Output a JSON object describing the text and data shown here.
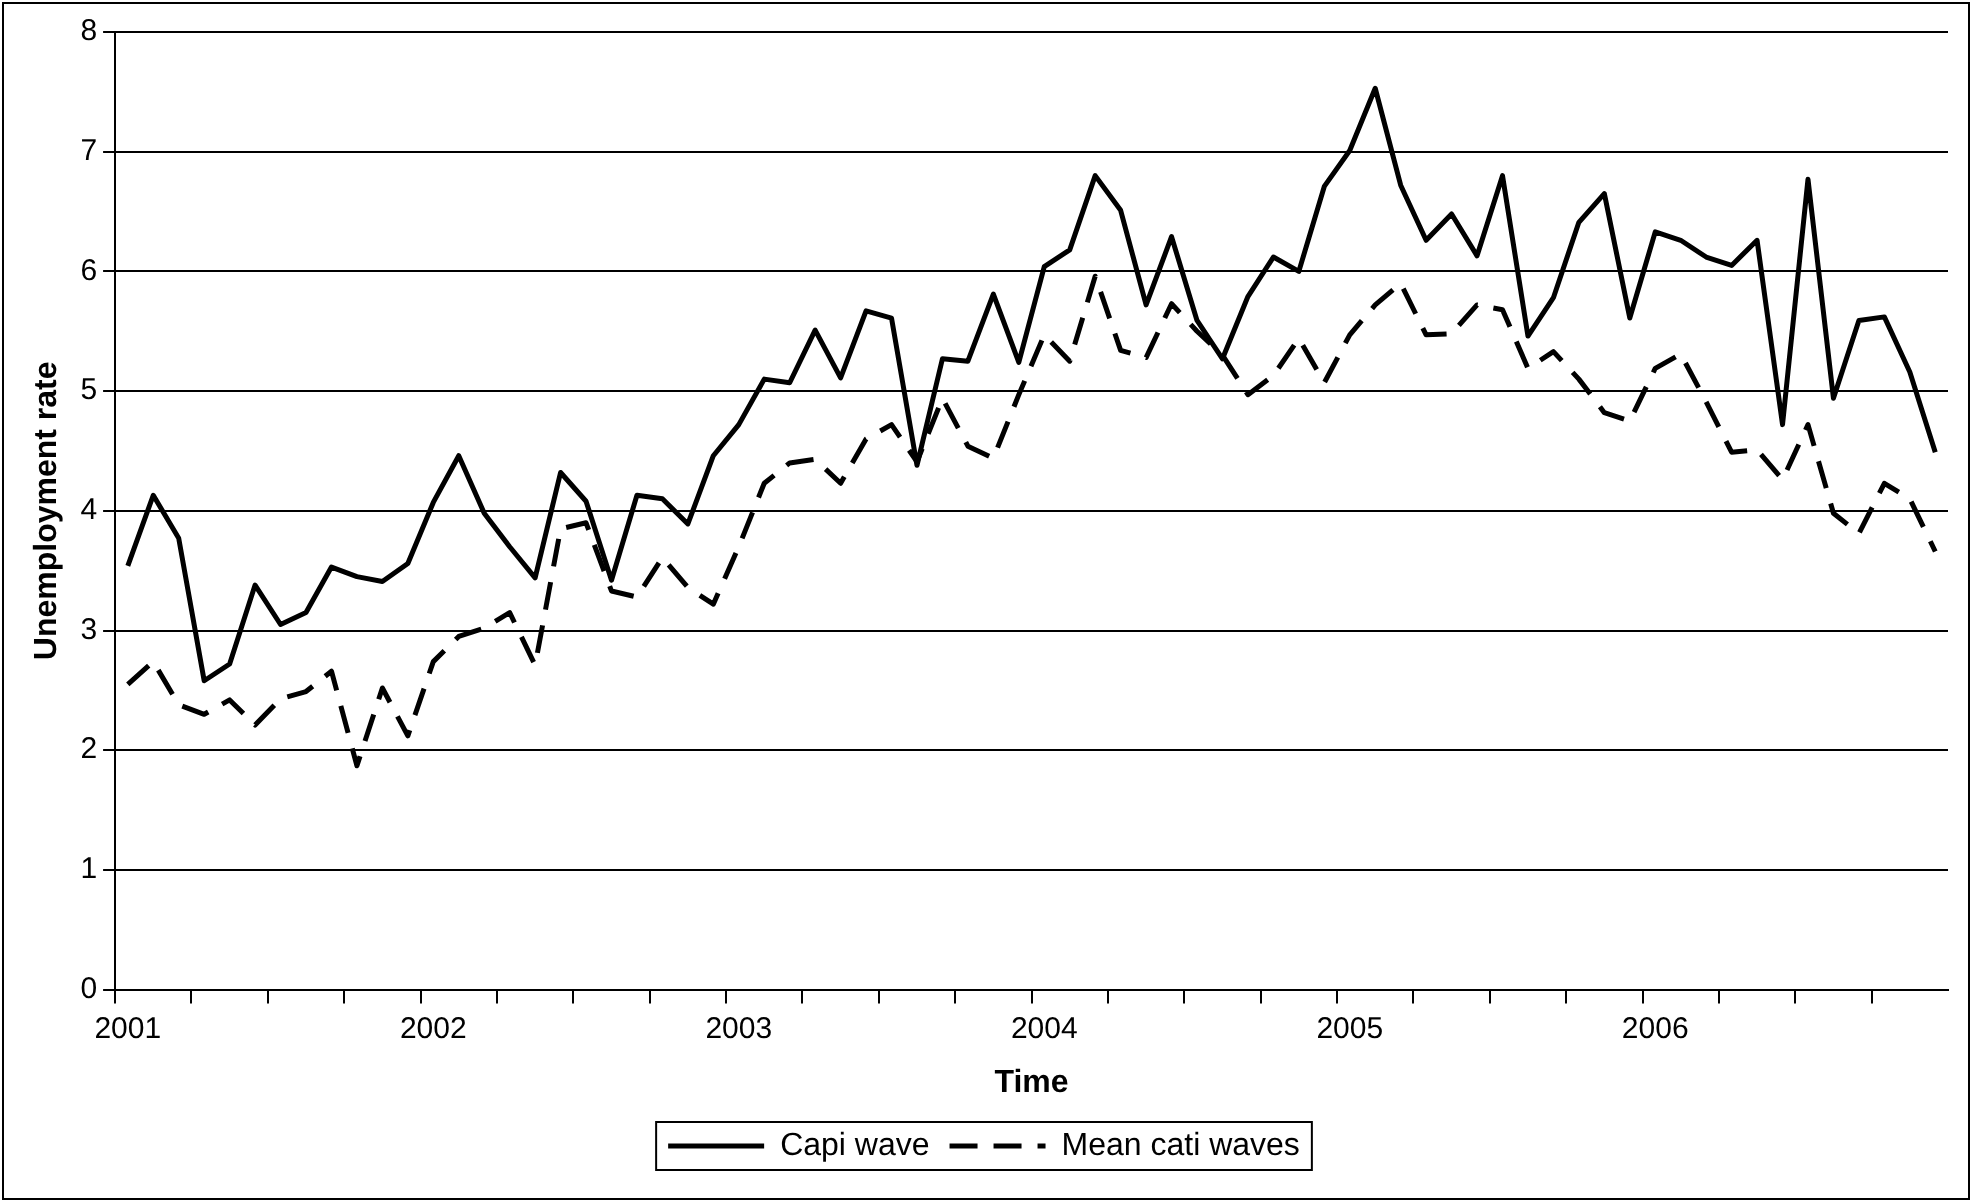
{
  "chart_data": {
    "type": "line",
    "xlabel": "Time",
    "ylabel": "Unemployment rate",
    "categories": [
      "2001",
      null,
      null,
      null,
      null,
      null,
      null,
      null,
      null,
      null,
      null,
      null,
      "2002",
      null,
      null,
      null,
      null,
      null,
      null,
      null,
      null,
      null,
      null,
      null,
      "2003",
      null,
      null,
      null,
      null,
      null,
      null,
      null,
      null,
      null,
      null,
      null,
      "2004",
      null,
      null,
      null,
      null,
      null,
      null,
      null,
      null,
      null,
      null,
      null,
      "2005",
      null,
      null,
      null,
      null,
      null,
      null,
      null,
      null,
      null,
      null,
      null,
      "2006",
      null,
      null,
      null,
      null,
      null,
      null,
      null,
      null,
      null,
      null,
      null
    ],
    "series": [
      {
        "name": "Capi wave",
        "color": "#000000",
        "line_style": "solid",
        "values": [
          3.54,
          4.13,
          3.77,
          2.58,
          2.72,
          3.38,
          3.05,
          3.15,
          3.53,
          3.45,
          3.41,
          3.56,
          4.07,
          4.46,
          3.98,
          3.7,
          3.44,
          4.32,
          4.08,
          3.42,
          4.13,
          4.1,
          3.89,
          4.46,
          4.72,
          5.1,
          5.07,
          5.51,
          5.11,
          5.67,
          5.61,
          4.38,
          5.27,
          5.25,
          5.81,
          5.24,
          6.04,
          6.18,
          6.8,
          6.51,
          5.72,
          6.29,
          5.59,
          5.27,
          5.79,
          6.12,
          6.0,
          6.71,
          7.01,
          7.53,
          6.72,
          6.26,
          6.48,
          6.13,
          6.8,
          5.46,
          5.78,
          6.41,
          6.65,
          5.61,
          6.33,
          6.26,
          6.12,
          6.05,
          6.26,
          4.72,
          6.77,
          4.94,
          5.59,
          5.62,
          5.16,
          4.49
        ]
      },
      {
        "name": "Mean cati waves",
        "color": "#000000",
        "line_style": "dashed",
        "values": [
          2.55,
          2.74,
          2.38,
          2.3,
          2.42,
          2.21,
          2.43,
          2.49,
          2.66,
          1.87,
          2.52,
          2.12,
          2.74,
          2.95,
          3.02,
          3.15,
          2.71,
          3.85,
          3.9,
          3.33,
          3.28,
          3.61,
          3.36,
          3.22,
          3.7,
          4.23,
          4.4,
          4.43,
          4.23,
          4.6,
          4.72,
          4.41,
          4.94,
          4.54,
          4.44,
          4.97,
          5.47,
          5.25,
          5.96,
          5.34,
          5.28,
          5.73,
          5.5,
          5.3,
          4.97,
          5.13,
          5.44,
          5.07,
          5.47,
          5.72,
          5.9,
          5.47,
          5.48,
          5.72,
          5.68,
          5.19,
          5.33,
          5.1,
          4.82,
          4.75,
          5.19,
          5.31,
          4.91,
          4.49,
          4.51,
          4.26,
          4.72,
          3.98,
          3.81,
          4.23,
          4.1,
          3.66
        ]
      }
    ],
    "ylim": [
      0,
      8
    ],
    "yticks": [
      0,
      1,
      2,
      3,
      4,
      5,
      6,
      7,
      8
    ],
    "grid": "y",
    "legend": "bottom",
    "marker": "none"
  }
}
